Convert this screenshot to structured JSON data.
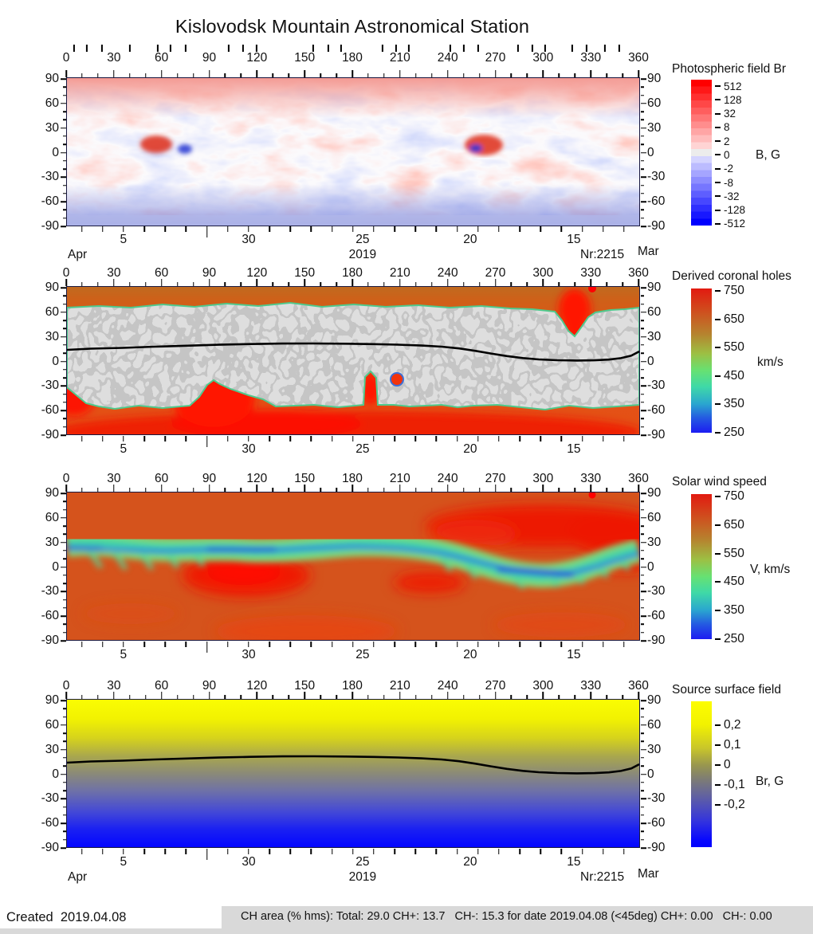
{
  "title": "Kislovodsk Mountain Astronomical Station",
  "axes": {
    "lon_ticks": [
      "0",
      "30",
      "60",
      "90",
      "120",
      "150",
      "180",
      "210",
      "240",
      "270",
      "300",
      "330",
      "360"
    ],
    "lat_ticks": [
      "90",
      "60",
      "30",
      "0",
      "-30",
      "-60",
      "-90"
    ],
    "day_ticks": [
      "5",
      "30",
      "25",
      "20",
      "15"
    ],
    "month_left": "Apr",
    "year": "2019",
    "rotation_number": "Nr:2215",
    "month_right": "Mar"
  },
  "panels": [
    {
      "title": "Photospheric field Br",
      "unit": "B, G",
      "colorbar_ticks": [
        "512",
        "128",
        "32",
        "8",
        "2",
        "0",
        "-2",
        "-8",
        "-32",
        "-128",
        "-512"
      ]
    },
    {
      "title": "Derived coronal holes",
      "unit": "km/s",
      "colorbar_ticks": [
        "750",
        "650",
        "550",
        "450",
        "350",
        "250"
      ]
    },
    {
      "title": "Solar wind speed",
      "unit": "V, km/s",
      "colorbar_ticks": [
        "750",
        "650",
        "550",
        "450",
        "350",
        "250"
      ]
    },
    {
      "title": "Source surface field",
      "unit": "Br, G",
      "colorbar_ticks": [
        "0,2",
        "0,1",
        "0",
        "-0,1",
        "-0,2"
      ]
    }
  ],
  "footer": {
    "created_label": "Created",
    "created_date": "2019.04.08",
    "status_text": "CH area (% hms): Total: 29.0 CH+: 13.7   CH-: 15.3 for date 2019.04.08 (<45deg) CH+: 0.00   CH-: 0.00"
  },
  "chart_data": [
    {
      "type": "heatmap",
      "title": "Photospheric field Br",
      "x_range": [
        0,
        360
      ],
      "x_ticks": [
        0,
        30,
        60,
        90,
        120,
        150,
        180,
        210,
        240,
        270,
        300,
        330,
        360
      ],
      "y_range": [
        -90,
        90
      ],
      "y_ticks": [
        90,
        60,
        30,
        0,
        -30,
        -60,
        -90
      ],
      "time_axis": {
        "start_month": "Apr",
        "day_labels": [
          5,
          30,
          25,
          20,
          15
        ],
        "end_month": "Mar",
        "year": "2019",
        "carrington_rotation": 2215
      },
      "colorbar": {
        "label": "B, G",
        "scale": "symmetric-log",
        "ticks": [
          512,
          128,
          32,
          8,
          2,
          0,
          -2,
          -8,
          -32,
          -128,
          -512
        ],
        "colors": {
          "positive": "#ff0000",
          "zero": "#ececec",
          "negative": "#0000ff"
        }
      },
      "description": "Synoptic magnetogram: mottled red (positive) and blue (negative) polarity patches at low latitudes; diffuse positive (pink) field over the north polar cap and negative (blue) over the south; strong bipolar spots near lon 55 and lon 260 at lat ~+10."
    },
    {
      "type": "heatmap",
      "title": "Derived coronal holes",
      "x_range": [
        0,
        360
      ],
      "x_ticks": [
        0,
        30,
        60,
        90,
        120,
        150,
        180,
        210,
        240,
        270,
        300,
        330,
        360
      ],
      "y_range": [
        -90,
        90
      ],
      "y_ticks": [
        90,
        60,
        30,
        0,
        -30,
        -60,
        -90
      ],
      "time_axis": {
        "day_labels": [
          5,
          30,
          25,
          20,
          15
        ]
      },
      "colorbar": {
        "label": "km/s",
        "range": [
          250,
          750
        ],
        "ticks": [
          750,
          650,
          550,
          450,
          350,
          250
        ],
        "colors": [
          "#ee1505",
          "#c27a2e",
          "#8ccf55",
          "#3fd6a4",
          "#1c1cf2"
        ]
      },
      "description": "Gray speckled belt (about lat +65 to -55) marks closed-field regions; orange/red polar caps are coronal holes with high speed; red low-latitude hole extensions near lon 90 (south, up to lat -27), lon 195 (south) and lon 315 (north, down to lat +45); black curve is the magnetic neutral line near lat +20 dropping to ~0 between lon 250 and 330."
    },
    {
      "type": "heatmap",
      "title": "Solar wind speed",
      "x_range": [
        0,
        360
      ],
      "x_ticks": [
        0,
        30,
        60,
        90,
        120,
        150,
        180,
        210,
        240,
        270,
        300,
        330,
        360
      ],
      "y_range": [
        -90,
        90
      ],
      "y_ticks": [
        90,
        60,
        30,
        0,
        -30,
        -60,
        -90
      ],
      "time_axis": {
        "day_labels": [
          5,
          30,
          25,
          20,
          15
        ]
      },
      "colorbar": {
        "label": "V, km/s",
        "range": [
          250,
          750
        ],
        "ticks": [
          750,
          650,
          550,
          450,
          350,
          250
        ],
        "colors": [
          "#ee1505",
          "#c27a2e",
          "#8ccf55",
          "#3fd6a4",
          "#1c1cf2"
        ]
      },
      "description": "Fast orange/red wind (~650-750 km/s) at high latitudes; meandering slow-wind band (green/cyan/blue, ~300-500 km/s) along the heliospheric current sheet near the equator; very fast red patches near lon 100 lat -12, lon 225 lat -15, and a broad fast region lon 240-360 lat +30..+60."
    },
    {
      "type": "heatmap",
      "title": "Source surface field",
      "x_range": [
        0,
        360
      ],
      "x_ticks": [
        0,
        30,
        60,
        90,
        120,
        150,
        180,
        210,
        240,
        270,
        300,
        330,
        360
      ],
      "y_range": [
        -90,
        90
      ],
      "y_ticks": [
        90,
        60,
        30,
        0,
        -30,
        -60,
        -90
      ],
      "time_axis": {
        "start_month": "Apr",
        "day_labels": [
          5,
          30,
          25,
          20,
          15
        ],
        "end_month": "Mar",
        "year": "2019",
        "carrington_rotation": 2215
      },
      "colorbar": {
        "label": "Br, G",
        "ticks": [
          0.2,
          0.1,
          0,
          -0.1,
          -0.2
        ],
        "colors": {
          "positive": "#ffff00",
          "zero": "#80808c",
          "negative": "#0000ff"
        }
      },
      "description": "Smooth dipolar field at the source surface: positive (yellow) northern hemisphere grading to negative (blue) southern hemisphere; black neutral line near lat +15 descending to ~0 between lon 250 and 330."
    }
  ]
}
